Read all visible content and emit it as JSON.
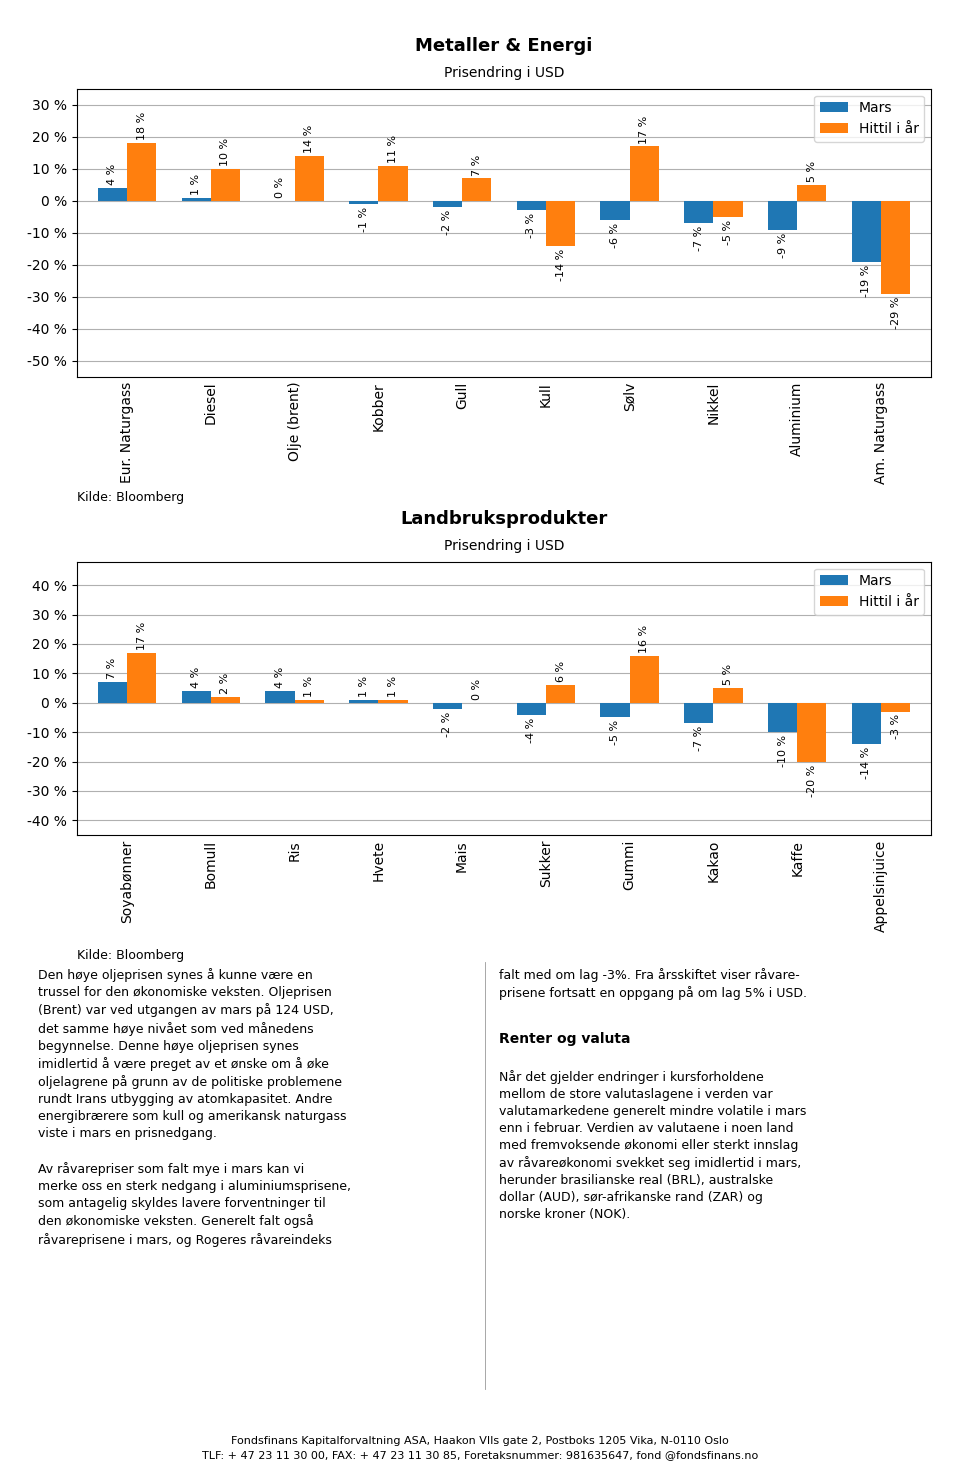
{
  "chart_data": [
    {
      "type": "bar",
      "title": "Metaller & Energi",
      "subtitle": "Prisendring i USD",
      "categories": [
        "Eur. Naturgass",
        "Diesel",
        "Olje (brent)",
        "Kobber",
        "Gull",
        "Kull",
        "Sølv",
        "Nikkel",
        "Aluminium",
        "Am. Naturgass"
      ],
      "series": [
        {
          "name": "Mars",
          "values": [
            4,
            1,
            0,
            -1,
            -2,
            -3,
            -6,
            -7,
            -9,
            -19
          ],
          "value_labels": [
            "4 %",
            "1 %",
            "0 %",
            "-1 %",
            "-2 %",
            "-3 %",
            "-6 %",
            "-7 %",
            "-9 %",
            "-19 %"
          ]
        },
        {
          "name": "Hittil i år",
          "values": [
            18,
            10,
            14,
            11,
            7,
            -14,
            17,
            -5,
            5,
            -29
          ],
          "value_labels": [
            "18 %",
            "10 %",
            "14 %",
            "11 %",
            "7 %",
            "-14 %",
            "17 %",
            "-5 %",
            "5 %",
            "-29 %"
          ]
        }
      ],
      "ylim": [
        -55,
        35
      ],
      "yticks": [
        {
          "value": -50,
          "label": "-50 %"
        },
        {
          "value": -40,
          "label": "-40 %"
        },
        {
          "value": -30,
          "label": "-30 %"
        },
        {
          "value": -20,
          "label": "-20 %"
        },
        {
          "value": -10,
          "label": "-10 %"
        },
        {
          "value": 0,
          "label": "0 %"
        },
        {
          "value": 10,
          "label": "10 %"
        },
        {
          "value": 20,
          "label": "20 %"
        },
        {
          "value": 30,
          "label": "30 %"
        }
      ],
      "grid": true,
      "legend": "upper right",
      "data_labels": true,
      "annotations": [
        "Kilde: Bloomberg"
      ]
    },
    {
      "type": "bar",
      "title": "Landbruksprodukter",
      "subtitle": "Prisendring i USD",
      "categories": [
        "Soyabønner",
        "Bomull",
        "Ris",
        "Hvete",
        "Mais",
        "Sukker",
        "Gummi",
        "Kakao",
        "Kaffe",
        "Appelsinjuice"
      ],
      "series": [
        {
          "name": "Mars",
          "values": [
            7,
            4,
            4,
            1,
            -2,
            -4,
            -5,
            -7,
            -10,
            -14
          ],
          "value_labels": [
            "7 %",
            "4 %",
            "4 %",
            "1 %",
            "-2 %",
            "-4 %",
            "-5 %",
            "-7 %",
            "-10 %",
            "-14 %"
          ]
        },
        {
          "name": "Hittil i år",
          "values": [
            17,
            2,
            1,
            1,
            0,
            6,
            16,
            5,
            -20,
            -3
          ],
          "value_labels": [
            "17 %",
            "2 %",
            "1 %",
            "1 %",
            "0 %",
            "6 %",
            "16 %",
            "5 %",
            "-20 %",
            "-3 %"
          ]
        }
      ],
      "ylim": [
        -45,
        48
      ],
      "yticks": [
        {
          "value": -40,
          "label": "-40 %"
        },
        {
          "value": -30,
          "label": "-30 %"
        },
        {
          "value": -20,
          "label": "-20 %"
        },
        {
          "value": -10,
          "label": "-10 %"
        },
        {
          "value": 0,
          "label": "0 %"
        },
        {
          "value": 10,
          "label": "10 %"
        },
        {
          "value": 20,
          "label": "20 %"
        },
        {
          "value": 30,
          "label": "30 %"
        },
        {
          "value": 40,
          "label": "40 %"
        }
      ],
      "grid": true,
      "legend": "upper right",
      "data_labels": true,
      "annotations": [
        "Kilde: Bloomberg"
      ]
    }
  ],
  "annotations": [
    "Den høye oljeprisen synes å kunne være en\ntrussel for den økonomiske veksten. Oljeprisen\n(Brent) var ved utgangen av mars på 124 USD,\ndet samme høye nivået som ved månedens\nbegynnelse. Denne høye oljeprisen synes\nimidlertid å være preget av et ønske om å øke\noljelagrene på grunn av de politiske problemene\nrundt Irans utbygging av atomkapasitet. Andre\nenergibrærere som kull og amerikansk naturgass\nviste i mars en prisnedgang.\n\nAv råvarepriser som falt mye i mars kan vi\nmerke oss en sterk nedgang i aluminiumsprisene,\nsom antagelig skyldes lavere forventninger til\nden økonomiske veksten. Generelt falt også\nråvareprisene i mars, og Rogeres råvareindeks",
    "falt med om lag -3%. Fra årsskiftet viser råvare-\nprisene fortsatt en oppgang på om lag 5% i USD.",
    "Renter og valuta",
    "Når det gjelder endringer i kursforholdene\nmellom de store valutaslagene i verden var\nvalutamarkedene generelt mindre volatile i mars\nenn i februar. Verdien av valutaene i noen land\nmed fremvoksende økonomi eller sterkt innslag\nav råvareøkonomi svekket seg imidlertid i mars,\nherunder brasilianske real (BRL), australske\ndollar (AUD), sør-afrikanske rand (ZAR) og\nnorske kroner (NOK).",
    "Fondsfinans Kapitalforvaltning ASA, Haakon VIIs gate 2, Postboks 1205 Vika, N-0110 Oslo\nTLF: + 47 23 11 30 00, FAX: + 47 23 11 30 85, Foretaksnummer: 981635647, fond @fondsfinans.no"
  ]
}
